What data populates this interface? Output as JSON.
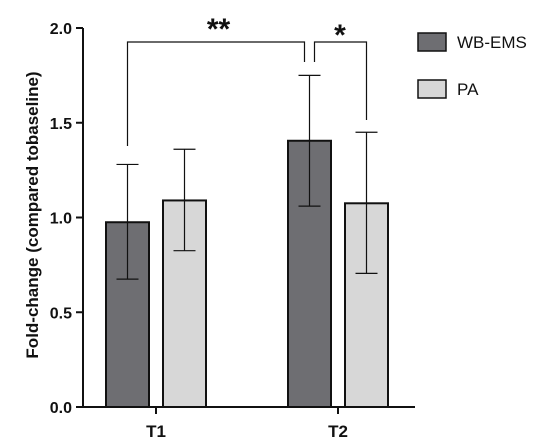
{
  "chart_data": {
    "type": "bar",
    "title": "",
    "xlabel": "",
    "ylabel": "Fold-change (compared tobaseline)",
    "ylim": [
      0,
      2.0
    ],
    "yticks": [
      "0.0",
      "0.5",
      "1.0",
      "1.5",
      "2.0"
    ],
    "ytick_values": [
      0,
      0.5,
      1.0,
      1.5,
      2.0
    ],
    "categories": [
      "T1",
      "T2"
    ],
    "series": [
      {
        "name": "WB-EMS",
        "color": "#6e6e72",
        "values": [
          0.975,
          1.405
        ],
        "error_low": [
          0.675,
          1.06
        ],
        "error_high": [
          1.28,
          1.75
        ]
      },
      {
        "name": "PA",
        "color": "#d7d7d7",
        "values": [
          1.09,
          1.075
        ],
        "error_low": [
          0.825,
          0.705
        ],
        "error_high": [
          1.36,
          1.45
        ]
      }
    ],
    "legend_position": "top-right",
    "grid": false,
    "annotations": [
      {
        "text": "**",
        "from": "T1 WB-EMS",
        "to": "T2 WB-EMS"
      },
      {
        "text": "*",
        "from": "T2 WB-EMS",
        "to": "T2 PA"
      }
    ]
  }
}
